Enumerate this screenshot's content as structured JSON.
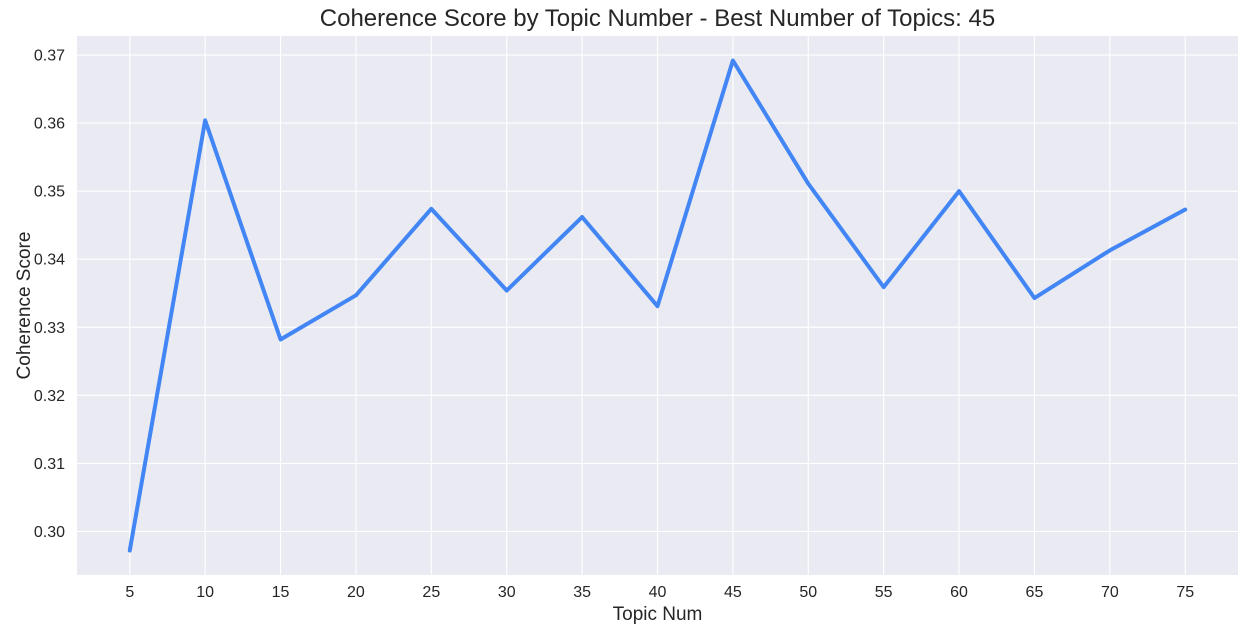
{
  "chart_data": {
    "type": "line",
    "title": "Coherence Score by Topic Number - Best Number of Topics: 45",
    "xlabel": "Topic Num",
    "ylabel": "Coherence Score",
    "x": [
      5,
      10,
      15,
      20,
      25,
      30,
      35,
      40,
      45,
      50,
      55,
      60,
      65,
      70,
      75
    ],
    "series": [
      {
        "values": [
          0.2972,
          0.3604,
          0.3282,
          0.3347,
          0.3474,
          0.3354,
          0.3462,
          0.3331,
          0.3692,
          0.3511,
          0.3359,
          0.35,
          0.3343,
          0.3413,
          0.3473
        ],
        "color": "#4285f4"
      }
    ],
    "xticks": [
      "5",
      "10",
      "15",
      "20",
      "25",
      "30",
      "35",
      "40",
      "45",
      "50",
      "55",
      "60",
      "65",
      "70",
      "75"
    ],
    "yticks": [
      "0.30",
      "0.31",
      "0.32",
      "0.33",
      "0.34",
      "0.35",
      "0.36",
      "0.37"
    ],
    "ylim": [
      0.2936,
      0.3728
    ],
    "xlim": [
      1.5,
      78.5
    ],
    "grid": true,
    "background_color": "#eaeaf2",
    "grid_color": "#ffffff"
  }
}
